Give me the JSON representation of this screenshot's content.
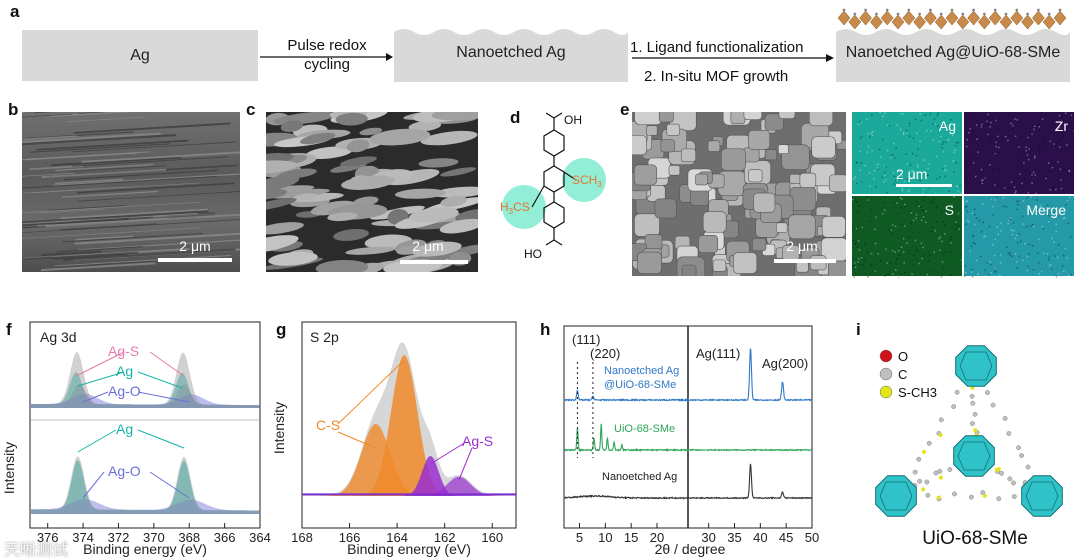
{
  "panel_a": {
    "label": "a",
    "box1": "Ag",
    "step1_line1": "Pulse redox",
    "step1_line2": "cycling",
    "box2": "Nanoetched Ag",
    "step2_line1": "1.  Ligand functionalization",
    "step2_line2": "2. In-situ MOF growth",
    "box3": "Nanoetched Ag@UiO-68-SMe"
  },
  "panel_b": {
    "label": "b",
    "scale": "2 μm"
  },
  "panel_c": {
    "label": "c",
    "scale": "2 μm"
  },
  "panel_d": {
    "label": "d",
    "top_group": "OH",
    "bottom_group": "HO",
    "left_sub": "H3CS",
    "right_sub": "SCH3"
  },
  "panel_e": {
    "label": "e",
    "scale_sem": "2 μm",
    "scale_map": "2 μm",
    "maps": [
      "Ag",
      "Zr",
      "S",
      "Merge"
    ],
    "colors": {
      "Ag": "#1aa99a",
      "Zr": "#2a0f4a",
      "S": "#0f5a22",
      "Merge": "#2499a8"
    }
  },
  "panel_f": {
    "label": "f",
    "title": "Ag 3d",
    "ylabel": "Intensity",
    "xlabel": "Binding energy (eV)",
    "xticks": [
      "376",
      "374",
      "372",
      "370",
      "368",
      "366",
      "364"
    ],
    "top_peaks": [
      "Ag-S",
      "Ag",
      "Ag-O"
    ],
    "bottom_peaks": [
      "Ag",
      "Ag-O"
    ],
    "colors": {
      "Ag-S": "#e77bb0",
      "Ag": "#17b3a8",
      "Ag-O": "#6c6fd6"
    }
  },
  "panel_g": {
    "label": "g",
    "title": "S 2p",
    "ylabel": "Intensity",
    "xlabel": "Binding energy (eV)",
    "xticks": [
      "168",
      "166",
      "164",
      "162",
      "160"
    ],
    "peaks": [
      "C-S",
      "Ag-S"
    ],
    "colors": {
      "C-S": "#f08a2a",
      "Ag-S": "#9a2fd0",
      "baseline": "#7b2fd0"
    }
  },
  "panel_h": {
    "label": "h",
    "xlabel": "2θ / degree",
    "xticks": [
      "5",
      "10",
      "15",
      "20",
      "30",
      "35",
      "40",
      "45",
      "50"
    ],
    "annotations": [
      "(111)",
      "(220)",
      "Ag(111)",
      "Ag(200)"
    ],
    "series": [
      "Nanoetched Ag",
      "@UiO-68-SMe",
      "UiO-68-SMe",
      "Nanoetched Ag"
    ],
    "colors": {
      "composite": "#2f78c8",
      "mof": "#2fa65a",
      "ag": "#333333"
    }
  },
  "panel_i": {
    "label": "i",
    "legend": [
      "O",
      "C",
      "S-CH3"
    ],
    "legend_colors": [
      "#d0121b",
      "#bfbfbf",
      "#e3e316"
    ],
    "title": "UiO-68-SMe"
  },
  "watermark": "天晰测试"
}
